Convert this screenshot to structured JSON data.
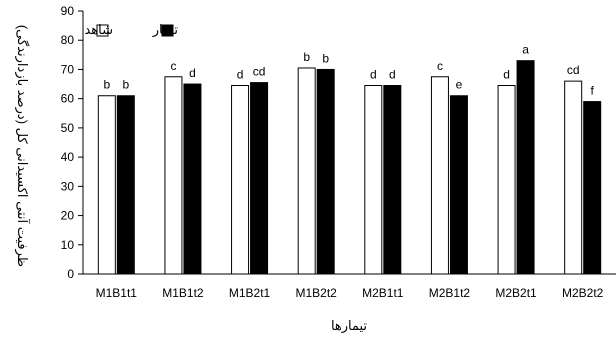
{
  "chart_data": {
    "type": "bar",
    "title": "",
    "xlabel": "تیمارها",
    "ylabel": "ظرفیت آنتی اکسیدانی کل (درصد بازدارندگی)",
    "ylim": [
      0,
      90
    ],
    "yticks": [
      "0",
      "10",
      "20",
      "30",
      "40",
      "50",
      "60",
      "70",
      "80",
      "90"
    ],
    "grid": false,
    "legend_position": "top-left",
    "categories": [
      "M1B1t1",
      "M1B1t2",
      "M1B2t1",
      "M1B2t2",
      "M2B1t1",
      "M2B1t2",
      "M2B2t1",
      "M2B2t2"
    ],
    "series": [
      {
        "name": "شاهد",
        "color": "#ffffff",
        "values": [
          61,
          67.5,
          64.5,
          70.5,
          64.5,
          67.5,
          64.5,
          66
        ],
        "labels": [
          "b",
          "c",
          "d",
          "b",
          "d",
          "c",
          "d",
          "cd"
        ]
      },
      {
        "name": "تیمار",
        "color": "#000000",
        "values": [
          61,
          65,
          65.5,
          70,
          64.5,
          61,
          73,
          59
        ],
        "labels": [
          "b",
          "d",
          "cd",
          "b",
          "d",
          "e",
          "a",
          "f"
        ]
      }
    ]
  }
}
